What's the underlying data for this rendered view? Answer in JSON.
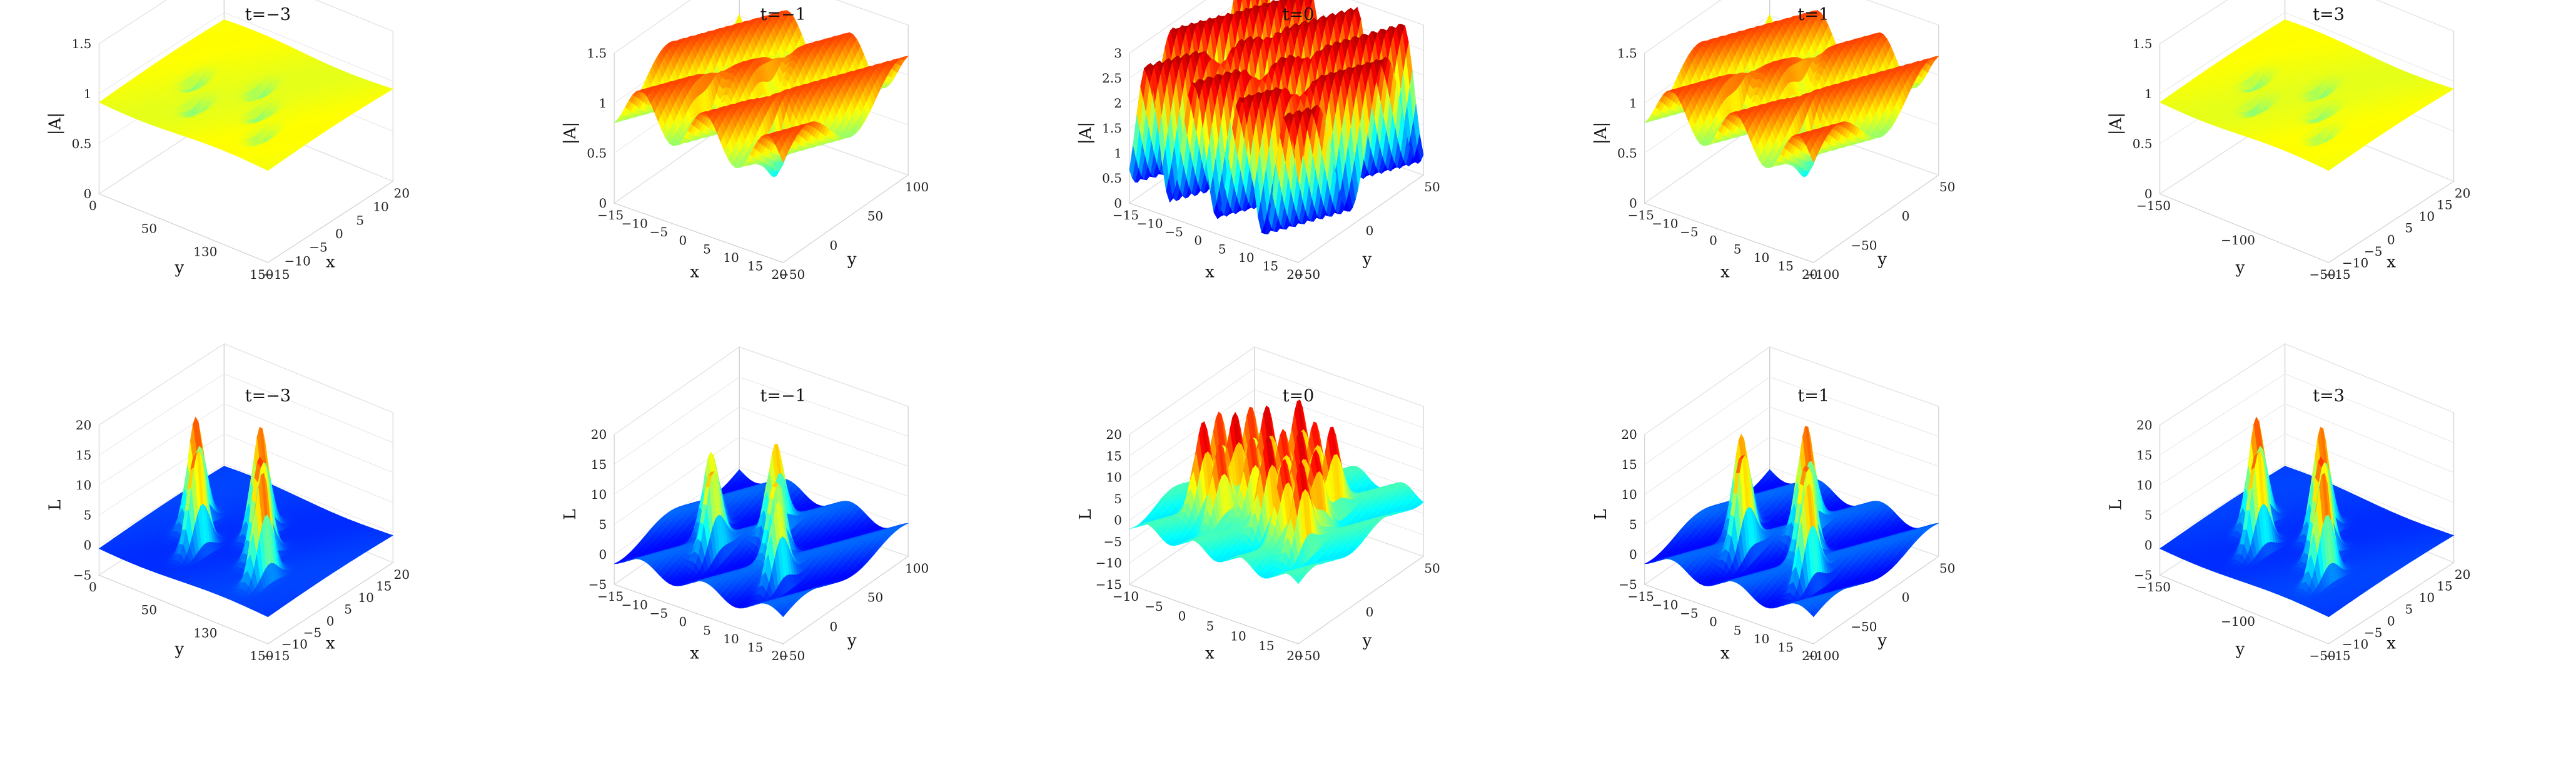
{
  "chart_data": [
    {
      "type": "surface",
      "row": "top",
      "title": "t=−3",
      "zlabel": "|A|",
      "xlabel": "x",
      "ylabel": "y",
      "z_ticks": [
        "0",
        "0.5",
        "1",
        "1.5"
      ],
      "x_ticks": [
        "−15",
        "−10",
        "−5",
        "0",
        "5",
        "10",
        "20"
      ],
      "y_ticks": [
        "0",
        "50",
        "130",
        "150"
      ],
      "zlim": [
        0,
        1.5
      ],
      "orientation": "right",
      "peaks": 5,
      "peak_height": 0.2,
      "peak_sign": -1,
      "base": 0.92,
      "wave": 0.02,
      "wave_freq": 0.5
    },
    {
      "type": "surface",
      "row": "top",
      "title": "t=−1",
      "zlabel": "|A|",
      "xlabel": "x",
      "ylabel": "y",
      "z_ticks": [
        "0",
        "0.5",
        "1",
        "1.5"
      ],
      "x_ticks": [
        "−15",
        "−10",
        "−5",
        "0",
        "5",
        "10",
        "15",
        "20"
      ],
      "y_ticks": [
        "−50",
        "0",
        "50",
        "100"
      ],
      "zlim": [
        0,
        1.5
      ],
      "orientation": "left",
      "peaks": 5,
      "peak_height": 0.35,
      "peak_sign": -1,
      "base": 1.0,
      "wave": 0.22,
      "wave_freq": 1.4
    },
    {
      "type": "surface",
      "row": "top",
      "title": "t=0",
      "zlabel": "|A|",
      "xlabel": "x",
      "ylabel": "y",
      "z_ticks": [
        "0",
        "0.5",
        "1",
        "1.5",
        "2",
        "2.5",
        "3"
      ],
      "x_ticks": [
        "−15",
        "−10",
        "−5",
        "0",
        "5",
        "10",
        "15",
        "20"
      ],
      "y_ticks": [
        "−50",
        "0",
        "50"
      ],
      "zlim": [
        0,
        3
      ],
      "orientation": "left",
      "peaks": 8,
      "peak_height": 0.4,
      "peak_sign": -1,
      "base": 1.6,
      "wave": 1.3,
      "wave_freq": 1.9
    },
    {
      "type": "surface",
      "row": "top",
      "title": "t=1",
      "zlabel": "|A|",
      "xlabel": "x",
      "ylabel": "y",
      "z_ticks": [
        "0",
        "0.5",
        "1",
        "1.5"
      ],
      "x_ticks": [
        "−15",
        "−10",
        "−5",
        "0",
        "5",
        "10",
        "15",
        "20"
      ],
      "y_ticks": [
        "−100",
        "−50",
        "0",
        "50"
      ],
      "zlim": [
        0,
        1.5
      ],
      "orientation": "left",
      "peaks": 5,
      "peak_height": 0.35,
      "peak_sign": -1,
      "base": 1.0,
      "wave": 0.22,
      "wave_freq": 1.4
    },
    {
      "type": "surface",
      "row": "top",
      "title": "t=3",
      "zlabel": "|A|",
      "xlabel": "x",
      "ylabel": "y",
      "z_ticks": [
        "0",
        "0.5",
        "1",
        "1.5"
      ],
      "x_ticks": [
        "−15",
        "−10",
        "−5",
        "0",
        "5",
        "10",
        "15",
        "20"
      ],
      "y_ticks": [
        "−150",
        "−100",
        "−50"
      ],
      "zlim": [
        0,
        1.5
      ],
      "orientation": "right",
      "peaks": 5,
      "peak_height": 0.2,
      "peak_sign": -1,
      "base": 0.92,
      "wave": 0.02,
      "wave_freq": 0.5
    },
    {
      "type": "surface",
      "row": "bottom",
      "title": "t=−3",
      "zlabel": "L",
      "xlabel": "x",
      "ylabel": "y",
      "z_ticks": [
        "−5",
        "0",
        "5",
        "10",
        "15",
        "20"
      ],
      "x_ticks": [
        "−15",
        "−10",
        "−5",
        "0",
        "5",
        "10",
        "15",
        "20"
      ],
      "y_ticks": [
        "0",
        "50",
        "130",
        "150"
      ],
      "zlim": [
        -5,
        20
      ],
      "orientation": "right",
      "peaks": 5,
      "peak_height": 18,
      "peak_sign": 1,
      "base": -0.5,
      "wave": 0.3,
      "wave_freq": 0.5
    },
    {
      "type": "surface",
      "row": "bottom",
      "title": "t=−1",
      "zlabel": "L",
      "xlabel": "x",
      "ylabel": "y",
      "z_ticks": [
        "−5",
        "0",
        "5",
        "10",
        "15",
        "20"
      ],
      "x_ticks": [
        "−15",
        "−10",
        "−5",
        "0",
        "5",
        "10",
        "15",
        "20"
      ],
      "y_ticks": [
        "−50",
        "0",
        "50",
        "100"
      ],
      "zlim": [
        -5,
        20
      ],
      "orientation": "left",
      "peaks": 5,
      "peak_height": 14,
      "peak_sign": 1,
      "base": -0.5,
      "wave": 1.2,
      "wave_freq": 1.4
    },
    {
      "type": "surface",
      "row": "bottom",
      "title": "t=0",
      "zlabel": "L",
      "xlabel": "x",
      "ylabel": "y",
      "z_ticks": [
        "−15",
        "−10",
        "−5",
        "0",
        "5",
        "10",
        "15",
        "20"
      ],
      "x_ticks": [
        "−10",
        "−5",
        "0",
        "5",
        "10",
        "15",
        "20"
      ],
      "y_ticks": [
        "−50",
        "0",
        "50"
      ],
      "zlim": [
        -15,
        20
      ],
      "orientation": "left",
      "peaks": 16,
      "peak_height": 20,
      "peak_sign": 1,
      "base": -1,
      "wave": 1.5,
      "wave_freq": 1.9
    },
    {
      "type": "surface",
      "row": "bottom",
      "title": "t=1",
      "zlabel": "L",
      "xlabel": "x",
      "ylabel": "y",
      "z_ticks": [
        "−5",
        "0",
        "5",
        "10",
        "15",
        "20"
      ],
      "x_ticks": [
        "−15",
        "−10",
        "−5",
        "0",
        "5",
        "10",
        "15",
        "20"
      ],
      "y_ticks": [
        "−100",
        "−50",
        "0",
        "50"
      ],
      "zlim": [
        -5,
        20
      ],
      "orientation": "left",
      "peaks": 5,
      "peak_height": 17,
      "peak_sign": 1,
      "base": -0.5,
      "wave": 1.2,
      "wave_freq": 1.4
    },
    {
      "type": "surface",
      "row": "bottom",
      "title": "t=3",
      "zlabel": "L",
      "xlabel": "x",
      "ylabel": "y",
      "z_ticks": [
        "−5",
        "0",
        "5",
        "10",
        "15",
        "20"
      ],
      "x_ticks": [
        "−15",
        "−10",
        "−5",
        "0",
        "5",
        "10",
        "15",
        "20"
      ],
      "y_ticks": [
        "−150",
        "−100",
        "−50"
      ],
      "zlim": [
        -5,
        20
      ],
      "orientation": "right",
      "peaks": 5,
      "peak_height": 18,
      "peak_sign": 1,
      "base": -0.5,
      "wave": 0.3,
      "wave_freq": 0.5
    }
  ]
}
